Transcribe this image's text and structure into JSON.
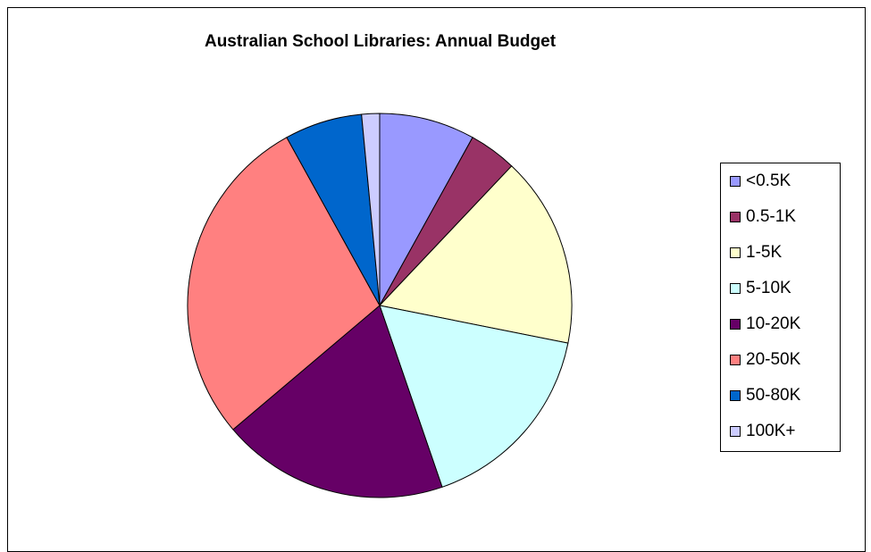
{
  "chart_data": {
    "type": "pie",
    "title": "Australian School Libraries: Annual Budget",
    "legend_position": "right",
    "slices": [
      {
        "label": "<0.5K",
        "value": 8.0,
        "color": "#9999FF"
      },
      {
        "label": "0.5-1K",
        "value": 4.0,
        "color": "#993366"
      },
      {
        "label": "1-5K",
        "value": 16.0,
        "color": "#FFFFCC"
      },
      {
        "label": "5-10K",
        "value": 16.5,
        "color": "#CCFFFF"
      },
      {
        "label": "10-20K",
        "value": 19.0,
        "color": "#660066"
      },
      {
        "label": "20-50K",
        "value": 28.0,
        "color": "#FF8080"
      },
      {
        "label": "50-80K",
        "value": 6.5,
        "color": "#0066CC"
      },
      {
        "label": "100K+",
        "value": 1.5,
        "color": "#CCCCFF"
      }
    ]
  }
}
